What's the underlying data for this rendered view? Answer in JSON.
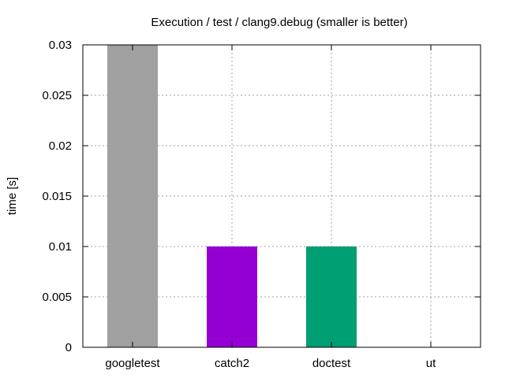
{
  "chart_data": {
    "type": "bar",
    "title": "Execution / test / clang9.debug (smaller is better)",
    "xlabel": "",
    "ylabel": "time [s]",
    "categories": [
      "googletest",
      "catch2",
      "doctest",
      "ut"
    ],
    "values": [
      0.03,
      0.01,
      0.01,
      0
    ],
    "bar_colors": [
      "#a0a0a0",
      "#9400d3",
      "#009e73",
      "#56b4e9"
    ],
    "ylim": [
      0,
      0.03
    ],
    "yticks": [
      0,
      0.005,
      0.01,
      0.015,
      0.02,
      0.025,
      0.03
    ],
    "ytick_labels": [
      "0",
      "0.005",
      "0.01",
      "0.015",
      "0.02",
      "0.025",
      "0.03"
    ],
    "grid": true,
    "legend": "none"
  }
}
